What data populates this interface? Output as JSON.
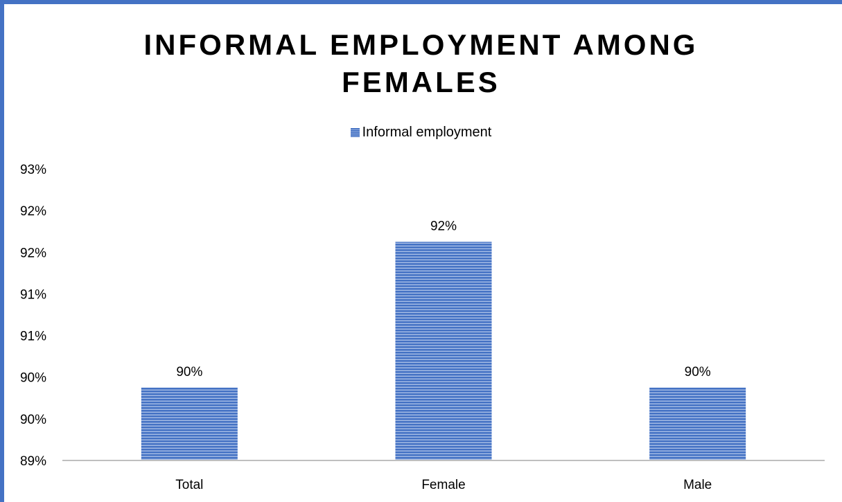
{
  "chart_data": {
    "type": "bar",
    "title": "INFORMAL EMPLOYMENT AMONG FEMALES",
    "categories": [
      "Total",
      "Female",
      "Male"
    ],
    "series": [
      {
        "name": "Informal employment",
        "values": [
          90,
          92,
          90
        ],
        "color": "#4472c4"
      }
    ],
    "data_labels": [
      "90%",
      "92%",
      "90%"
    ],
    "y_tick_labels": [
      "93%",
      "92%",
      "92%",
      "91%",
      "91%",
      "90%",
      "90%",
      "89%"
    ],
    "ylim": [
      89,
      93
    ],
    "grid": false,
    "legend_position": "top"
  }
}
